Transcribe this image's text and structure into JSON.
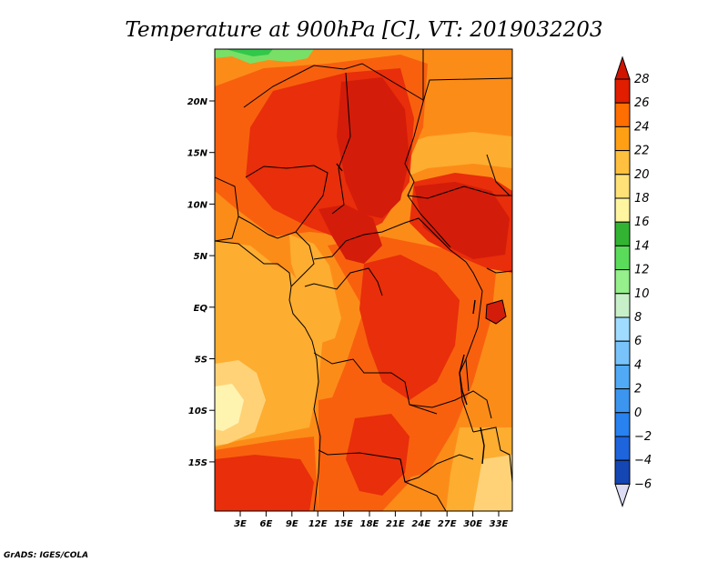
{
  "title": "Temperature at 900hPa [C], VT: 2019032203",
  "credit": "GrADS: IGES/COLA",
  "map": {
    "lon_ticks": [
      "3E",
      "6E",
      "9E",
      "12E",
      "15E",
      "18E",
      "21E",
      "24E",
      "27E",
      "30E",
      "33E"
    ],
    "lat_ticks": [
      "20N",
      "15N",
      "10N",
      "5N",
      "EQ",
      "5S",
      "10S",
      "15S"
    ]
  },
  "colorbar": {
    "levels": [
      "-6",
      "-4",
      "-2",
      "0",
      "2",
      "4",
      "6",
      "8",
      "10",
      "12",
      "14",
      "16",
      "18",
      "20",
      "22",
      "24",
      "26",
      "28"
    ],
    "colors": [
      "#0a1e8c",
      "#1446b4",
      "#1e64dc",
      "#2882f0",
      "#3c96f0",
      "#50aaf5",
      "#78c3fa",
      "#a0dcff",
      "#c8f0c8",
      "#96f08c",
      "#5adc5a",
      "#32b432",
      "#fff5a0",
      "#ffe178",
      "#ffc040",
      "#ffa014",
      "#ff6e00",
      "#e11e00",
      "#d01400"
    ]
  },
  "colors": {
    "r28": "#d41c0a",
    "r26": "#e82e0a",
    "r24": "#f8600e",
    "r22": "#fc8c18",
    "r20": "#fdad30",
    "r18": "#ffd278",
    "r16": "#fff3b0",
    "g14": "#32c84a",
    "g12": "#78e066"
  }
}
